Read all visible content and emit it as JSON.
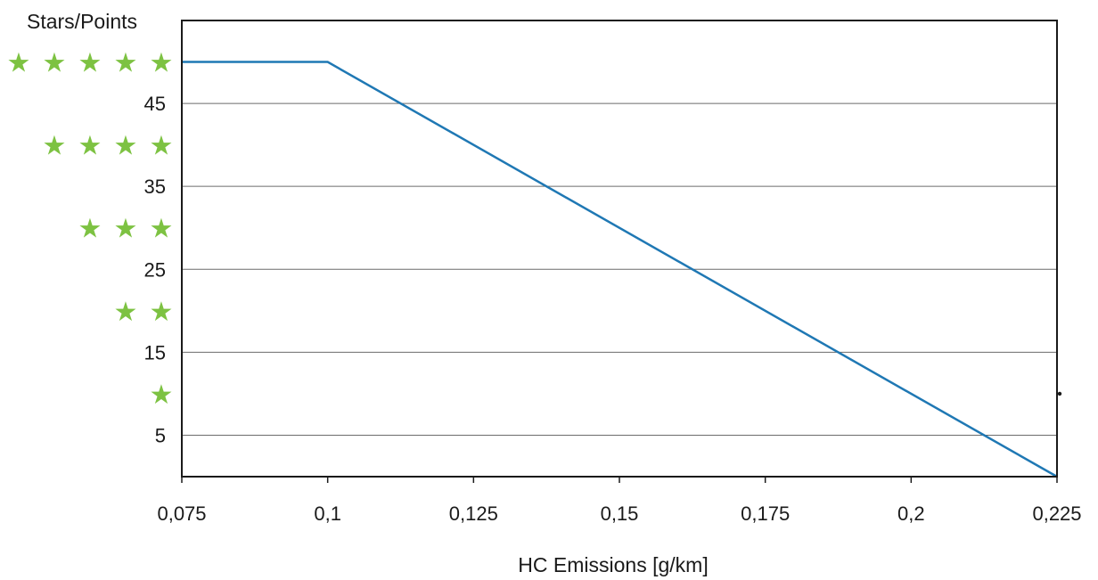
{
  "chart_data": {
    "type": "line",
    "title": "",
    "ylabel": "Stars/Points",
    "xlabel": "HC Emissions [g/km]",
    "xlim": [
      0.075,
      0.225
    ],
    "ylim": [
      0,
      55
    ],
    "grid": true,
    "x_ticks": [
      {
        "value": 0.075,
        "label": "0,075"
      },
      {
        "value": 0.1,
        "label": "0,1"
      },
      {
        "value": 0.125,
        "label": "0,125"
      },
      {
        "value": 0.15,
        "label": "0,15"
      },
      {
        "value": 0.175,
        "label": "0,175"
      },
      {
        "value": 0.2,
        "label": "0,2"
      },
      {
        "value": 0.225,
        "label": "0,225"
      }
    ],
    "y_ticks": [
      {
        "value": 5,
        "label": "5"
      },
      {
        "value": 15,
        "label": "15"
      },
      {
        "value": 25,
        "label": "25"
      },
      {
        "value": 35,
        "label": "35"
      },
      {
        "value": 45,
        "label": "45"
      }
    ],
    "star_levels": [
      {
        "value": 50,
        "stars": 5
      },
      {
        "value": 40,
        "stars": 4
      },
      {
        "value": 30,
        "stars": 3
      },
      {
        "value": 20,
        "stars": 2
      },
      {
        "value": 10,
        "stars": 1
      }
    ],
    "series": [
      {
        "color": "#1f78b4",
        "x": [
          0.075,
          0.1,
          0.225
        ],
        "y": [
          50,
          50,
          0
        ]
      }
    ],
    "colors": {
      "line": "#1f78b4",
      "star": "#7dc242",
      "grid": "#6b6b6b",
      "axis": "#1a1a1a"
    },
    "star_glyph": "★"
  }
}
